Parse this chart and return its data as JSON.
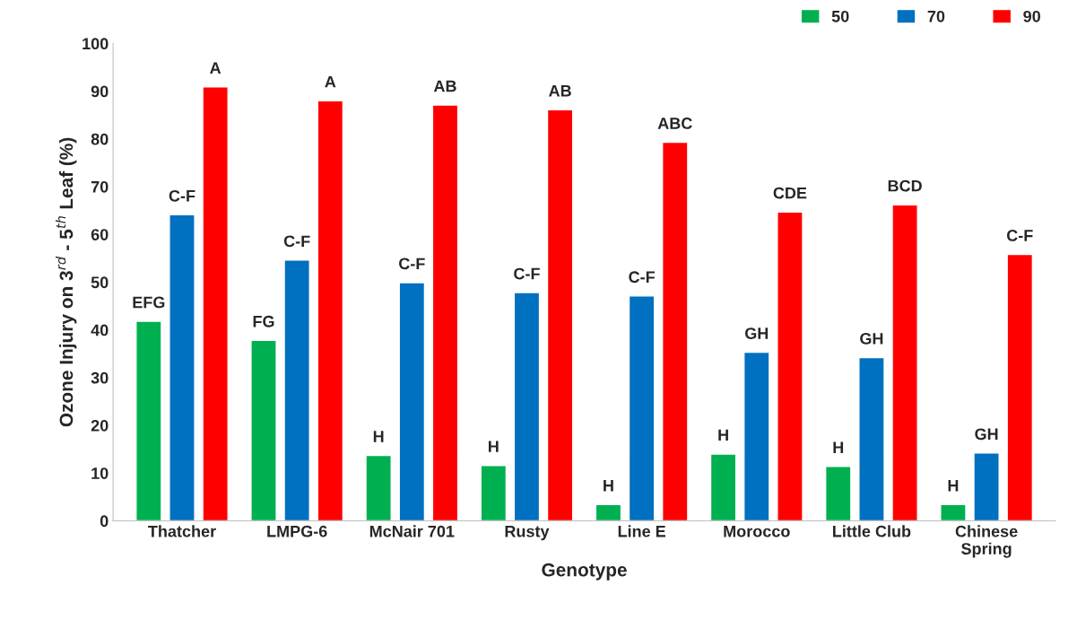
{
  "chart_data": {
    "type": "bar",
    "xlabel": "Genotype",
    "ylabel": "Ozone Injury on 3$^{rd}$ - 5$^{th}$ Leaf (%)",
    "categories": [
      "Thatcher",
      "LMPG-6",
      "McNair 701",
      "Rusty",
      "Line E",
      "Morocco",
      "Little Club",
      "Chinese\nSpring"
    ],
    "series": [
      {
        "name": "50",
        "color": "#00b050",
        "values": [
          41.8,
          37.8,
          13.7,
          11.6,
          3.4,
          14.0,
          11.4,
          3.4
        ],
        "value_labels": [
          "EFG",
          "FG",
          "H",
          "H",
          "H",
          "H",
          "H",
          "H"
        ]
      },
      {
        "name": "70",
        "color": "#0070c0",
        "values": [
          64.1,
          54.6,
          49.9,
          47.8,
          47.1,
          35.3,
          34.2,
          14.2
        ],
        "value_labels": [
          "C-F",
          "C-F",
          "C-F",
          "C-F",
          "C-F",
          "GH",
          "GH",
          "GH"
        ]
      },
      {
        "name": "90",
        "color": "#ff0000",
        "values": [
          90.9,
          88.0,
          87.1,
          86.1,
          79.3,
          64.7,
          66.2,
          55.8
        ],
        "value_labels": [
          "A",
          "A",
          "AB",
          "AB",
          "ABC",
          "CDE",
          "BCD",
          "C-F"
        ]
      }
    ],
    "ylim": [
      0,
      100
    ],
    "yticks": [
      0,
      10,
      20,
      30,
      40,
      50,
      60,
      70,
      80,
      90,
      100
    ],
    "grid": false,
    "legend": "top right"
  }
}
